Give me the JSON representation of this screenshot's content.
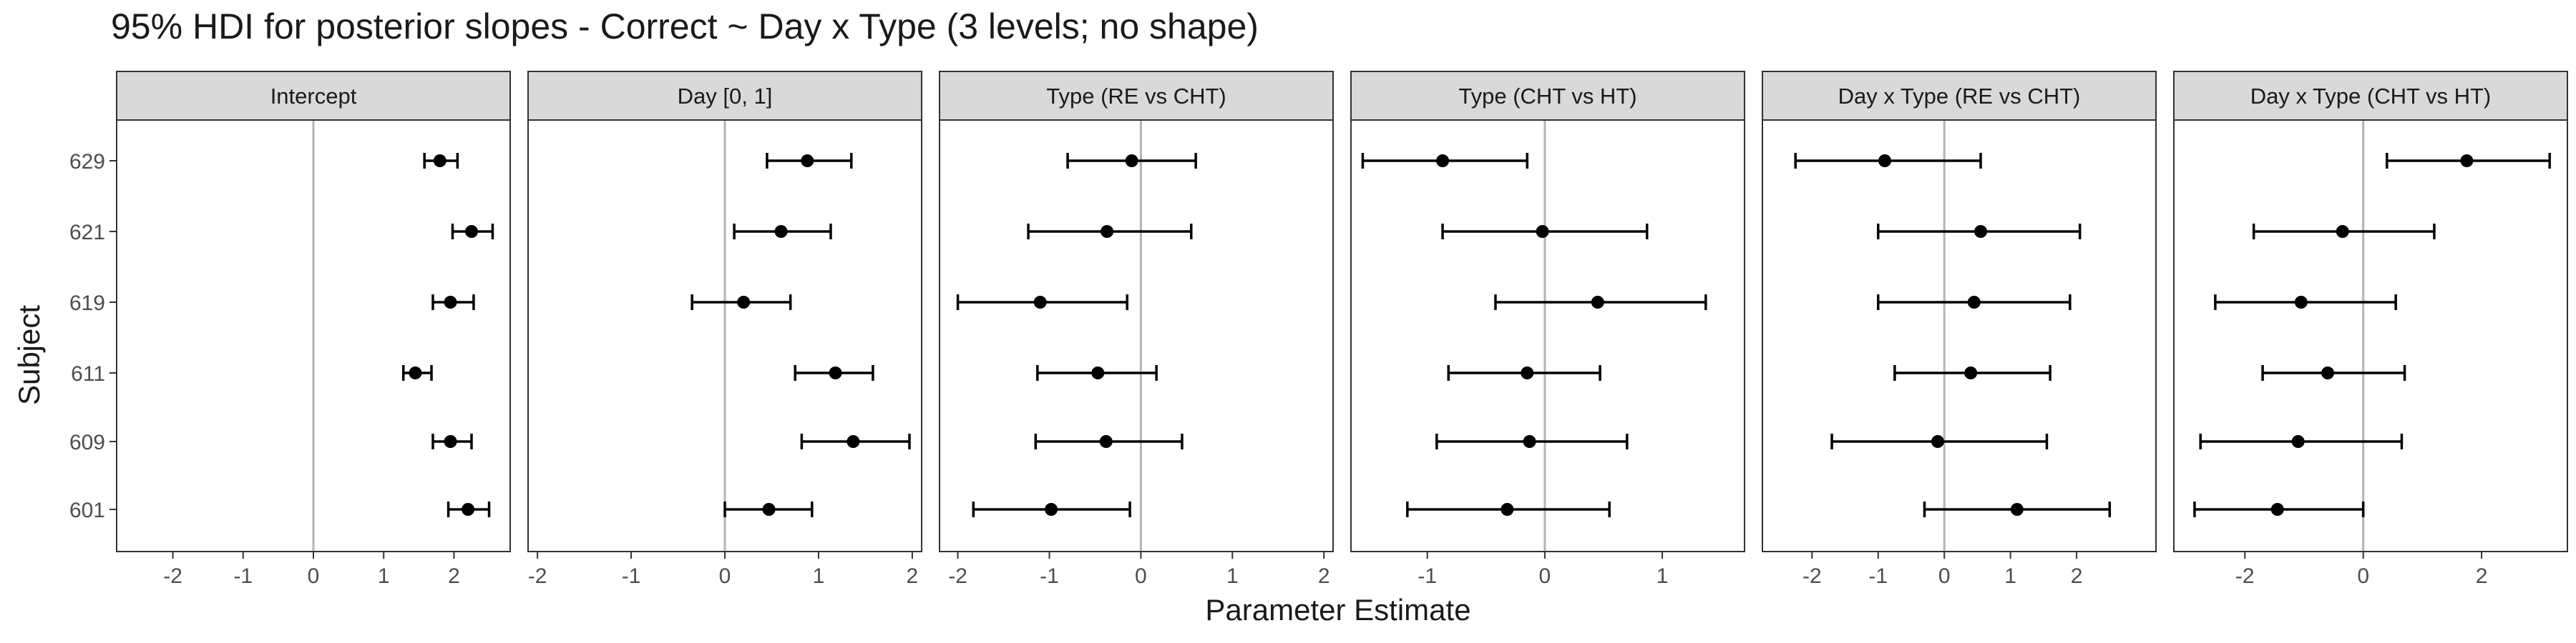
{
  "title": "95% HDI for posterior slopes - Correct ~ Day x Type (3 levels; no shape)",
  "chart_data": {
    "type": "dot-errorbar-facets",
    "title": "95% HDI for posterior slopes - Correct ~ Day x Type (3 levels; no shape)",
    "xlabel": "Parameter Estimate",
    "ylabel": "Subject",
    "subjects": [
      "629",
      "621",
      "619",
      "611",
      "609",
      "601"
    ],
    "reference_line": 0,
    "colors": {
      "panel_border": "#333333",
      "strip_fill": "#d9d9d9",
      "ref_line": "#b3b3b3",
      "points": "#000000"
    },
    "facets": [
      {
        "name": "Intercept",
        "xlim": [
          -2.8,
          2.8
        ],
        "ticks": [
          -2,
          -1,
          0,
          1,
          2
        ],
        "estimates": [
          1.8,
          2.25,
          1.95,
          1.45,
          1.95,
          2.2
        ],
        "lower": [
          1.58,
          1.98,
          1.7,
          1.28,
          1.7,
          1.92
        ],
        "upper": [
          2.05,
          2.55,
          2.28,
          1.68,
          2.25,
          2.5
        ]
      },
      {
        "name": "Day [0, 1]",
        "xlim": [
          -2.1,
          2.1
        ],
        "ticks": [
          -2,
          -1,
          0,
          1,
          2
        ],
        "estimates": [
          0.88,
          0.6,
          0.2,
          1.18,
          1.37,
          0.47
        ],
        "lower": [
          0.45,
          0.1,
          -0.35,
          0.75,
          0.82,
          0.0
        ],
        "upper": [
          1.35,
          1.13,
          0.7,
          1.58,
          1.97,
          0.93
        ]
      },
      {
        "name": "Type (RE vs CHT)",
        "xlim": [
          -2.2,
          2.1
        ],
        "ticks": [
          -2,
          -1,
          0,
          1,
          2
        ],
        "estimates": [
          -0.1,
          -0.37,
          -1.1,
          -0.47,
          -0.38,
          -0.98
        ],
        "lower": [
          -0.8,
          -1.23,
          -2.0,
          -1.13,
          -1.15,
          -1.83
        ],
        "upper": [
          0.6,
          0.55,
          -0.15,
          0.17,
          0.45,
          -0.12
        ]
      },
      {
        "name": "Type (CHT vs HT)",
        "xlim": [
          -1.65,
          1.7
        ],
        "ticks": [
          -1,
          0,
          1
        ],
        "estimates": [
          -0.87,
          -0.02,
          0.45,
          -0.15,
          -0.13,
          -0.32
        ],
        "lower": [
          -1.55,
          -0.87,
          -0.42,
          -0.82,
          -0.92,
          -1.17
        ],
        "upper": [
          -0.15,
          0.87,
          1.37,
          0.47,
          0.7,
          0.55
        ]
      },
      {
        "name": "Day x Type (RE vs CHT)",
        "xlim": [
          -2.75,
          3.2
        ],
        "ticks": [
          -2,
          -1,
          0,
          1,
          2
        ],
        "estimates": [
          -0.9,
          0.55,
          0.45,
          0.4,
          -0.1,
          1.1
        ],
        "lower": [
          -2.25,
          -1.0,
          -1.0,
          -0.75,
          -1.7,
          -0.3
        ],
        "upper": [
          0.55,
          2.05,
          1.9,
          1.6,
          1.55,
          2.5
        ]
      },
      {
        "name": "Day x Type (CHT vs HT)",
        "xlim": [
          -3.2,
          3.45
        ],
        "ticks": [
          -2,
          0,
          2
        ],
        "estimates": [
          1.75,
          -0.35,
          -1.05,
          -0.6,
          -1.1,
          -1.45
        ],
        "lower": [
          0.4,
          -1.85,
          -2.5,
          -1.7,
          -2.75,
          -2.85
        ],
        "upper": [
          3.15,
          1.2,
          0.55,
          0.7,
          0.65,
          0.0
        ]
      }
    ]
  }
}
